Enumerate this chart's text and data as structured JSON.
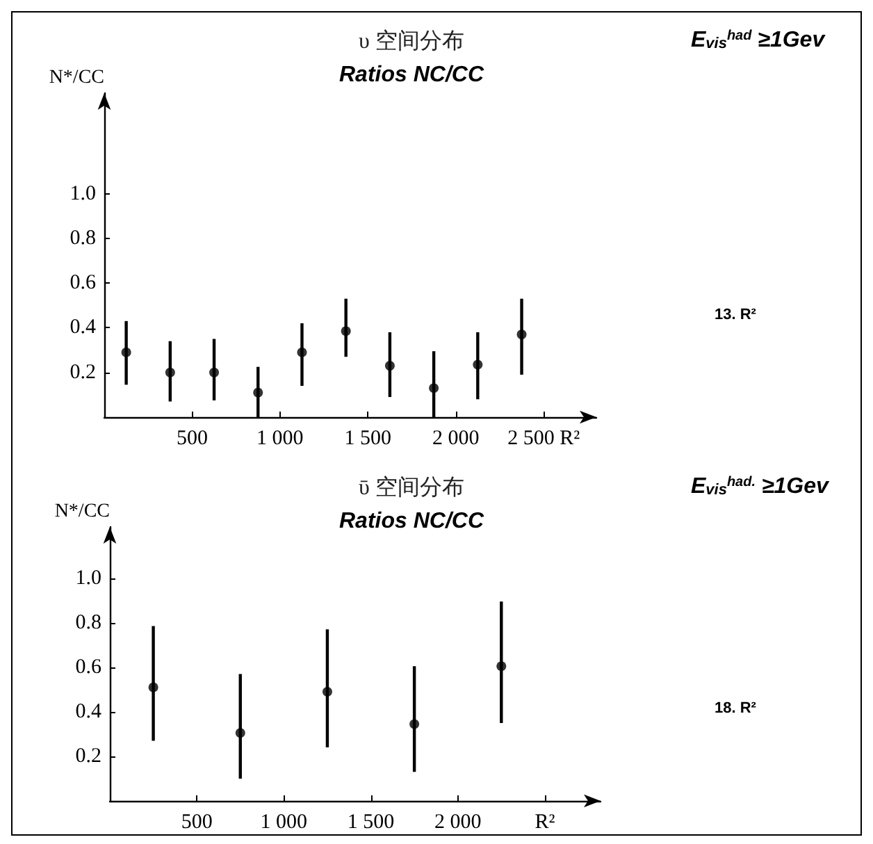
{
  "chart_data": [
    {
      "type": "scatter",
      "title": "υ 空间分布",
      "subtitle": "Ratios NC/CC",
      "ylabel": "N*/CC",
      "x": [
        125,
        375,
        625,
        875,
        1125,
        1375,
        1625,
        1875,
        2125,
        2375
      ],
      "values": [
        0.29,
        0.2,
        0.2,
        0.11,
        0.29,
        0.385,
        0.23,
        0.13,
        0.235,
        0.37
      ],
      "marker": "circle",
      "errors": [
        [
          0.145,
          0.43
        ],
        [
          0.07,
          0.34
        ],
        [
          0.075,
          0.35
        ],
        [
          0,
          0.225
        ],
        [
          0.14,
          0.42
        ],
        [
          0.27,
          0.53
        ],
        [
          0.09,
          0.38
        ],
        [
          0,
          0.295
        ],
        [
          0.08,
          0.38
        ],
        [
          0.19,
          0.53
        ]
      ],
      "color": "#000000",
      "xlim": [
        0,
        2800
      ],
      "xticks": [
        500,
        {
          "value": 1000,
          "label": "1 000"
        },
        {
          "value": 1500,
          "label": "1 500"
        },
        {
          "value": 2000,
          "label": "2 000"
        },
        {
          "value": 2500,
          "label": "2 500 R²"
        }
      ],
      "ylim": [
        0,
        1.45
      ],
      "yticks": [
        0.2,
        0.4,
        0.6,
        0.8,
        {
          "value": 1,
          "label": "1.0"
        }
      ],
      "annotations": [
        "E$_{vis}$$^{had}$ ≥1Gev",
        "13. R²"
      ]
    },
    {
      "type": "scatter",
      "title": "ῡ 空间分布",
      "subtitle": "Ratios NC/CC",
      "ylabel": "N*/CC",
      "x": [
        250,
        750,
        1250,
        1750,
        2250
      ],
      "values": [
        0.51,
        0.305,
        0.49,
        0.345,
        0.605
      ],
      "errors": [
        [
          0.27,
          0.785
        ],
        [
          0.1,
          0.57
        ],
        [
          0.24,
          0.77
        ],
        [
          0.13,
          0.605
        ],
        [
          0.35,
          0.895
        ]
      ],
      "color": "#000000",
      "marker": "circle",
      "xlim": [
        0,
        2820
      ],
      "xticks": [
        500,
        {
          "value": 1000,
          "label": "1 000"
        },
        {
          "value": 1500,
          "label": "1 500"
        },
        {
          "value": 2000,
          "label": "2 000"
        },
        {
          "value": 2500,
          "label": "R²"
        }
      ],
      "ylim": [
        0,
        1.23
      ],
      "yticks": [
        0.2,
        0.4,
        0.6,
        0.8,
        {
          "value": 1,
          "label": "1.0"
        }
      ],
      "annotations": [
        "E$_{vis}$$^{had.}$ ≥1Gev",
        "18. R²"
      ]
    }
  ]
}
